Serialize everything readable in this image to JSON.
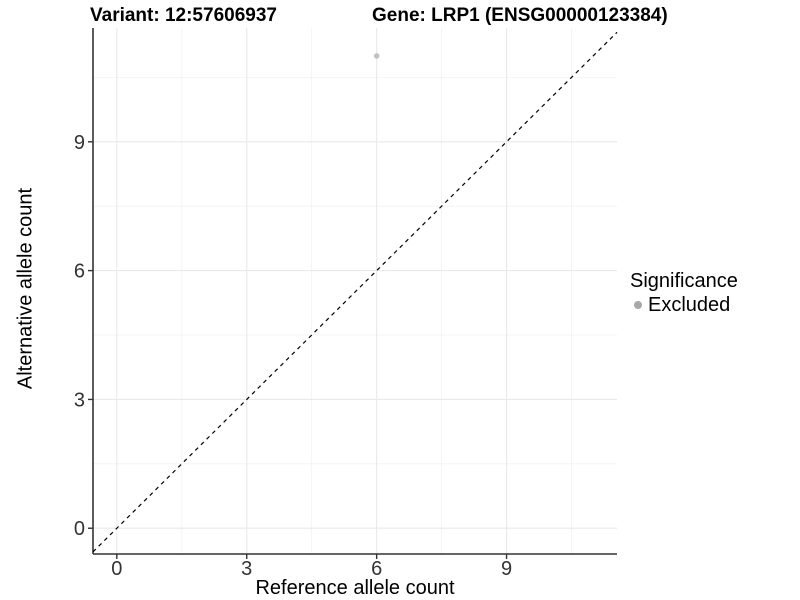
{
  "header": {
    "variant_title": "Variant: 12:57606937",
    "gene_title": "Gene: LRP1 (ENSG00000123384)"
  },
  "legend": {
    "title": "Significance",
    "items": [
      {
        "label": "Excluded",
        "color": "#a8a8a8"
      }
    ]
  },
  "colors": {
    "background": "#ffffff",
    "grid_major": "#e9e9e9",
    "grid_minor": "#f2f2f2",
    "axis_line": "#333333",
    "tick_mark": "#333333",
    "tick_label": "#333333",
    "point": "#c2c2c2",
    "reference_line": "#000000"
  },
  "chart_data": {
    "type": "scatter",
    "title": "",
    "xlabel": "Reference allele count",
    "ylabel": "Alternative allele count",
    "x_ticks": [
      0,
      3,
      6,
      9
    ],
    "y_ticks": [
      0,
      3,
      6,
      9
    ],
    "x_minor_ticks": [
      1.5,
      4.5,
      7.5,
      10.5
    ],
    "y_minor_ticks": [
      1.5,
      4.5,
      7.5,
      10.5
    ],
    "xlim": [
      -0.55,
      11.55
    ],
    "ylim": [
      -0.6,
      11.65
    ],
    "grid": true,
    "legend_position": "right",
    "series": [
      {
        "name": "Excluded",
        "color": "#c2c2c2",
        "points": [
          {
            "x": 6,
            "y": 11
          }
        ]
      }
    ],
    "reference_line": {
      "equation": "y = x",
      "style": "dashed",
      "color": "#000000"
    }
  }
}
